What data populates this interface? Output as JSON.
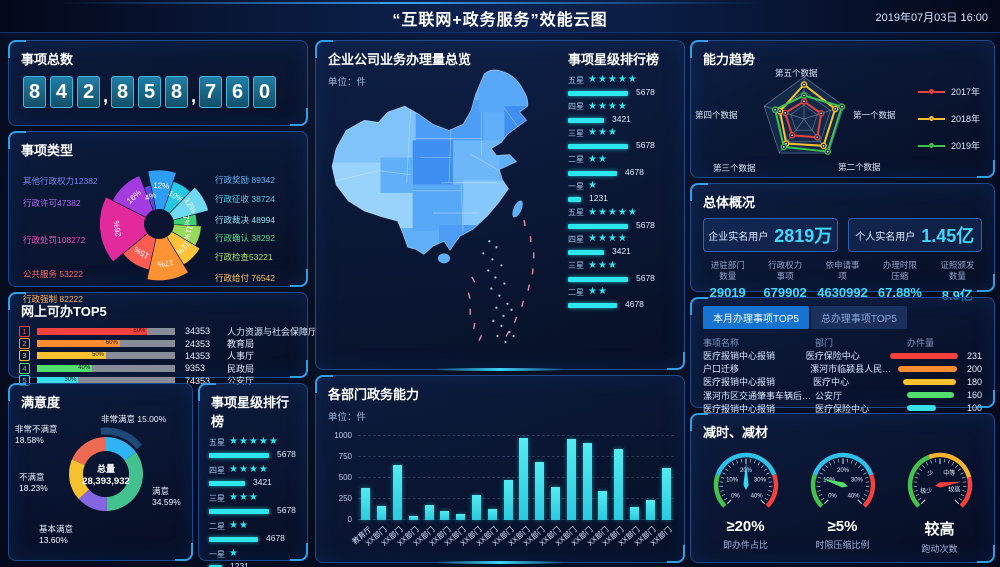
{
  "header": {
    "title": "“互联网+政务服务”效能云图",
    "datetime": "2019年07月03日  16:00"
  },
  "panels": {
    "total_count": {
      "title": "事项总数",
      "value": "842,858,760"
    },
    "item_types": {
      "title": "事项类型"
    },
    "online_top5": {
      "title": "网上可办TOP5"
    },
    "satisfaction": {
      "title": "满意度"
    },
    "star_rank_small": {
      "title": "事项星级排行榜"
    },
    "map_overview": {
      "title": "企业公司业务办理量总览",
      "unit": "单位：件"
    },
    "star_rank_map": {
      "title": "事项星级排行榜"
    },
    "dept_ability": {
      "title": "各部门政务能力",
      "unit": "单位：件"
    },
    "ability_trend": {
      "title": "能力趋势"
    },
    "overview": {
      "title": "总体概况",
      "big_stats": [
        {
          "label": "企业实名用户",
          "value": "2819万"
        },
        {
          "label": "个人实名用户",
          "value": "1.45亿"
        }
      ],
      "stats": [
        {
          "label_lines": [
            "进驻部门",
            "数量"
          ],
          "value": "29019"
        },
        {
          "label_lines": [
            "行政权力",
            "事项"
          ],
          "value": "679902"
        },
        {
          "label_lines": [
            "依申请事",
            "项"
          ],
          "value": "4630992"
        },
        {
          "label_lines": [
            "办理时限",
            "压缩"
          ],
          "value": "67.88%"
        },
        {
          "label_lines": [
            "证照颁发",
            "数量"
          ],
          "value": "8.9亿"
        }
      ]
    },
    "handle_top5": {
      "tabs": [
        {
          "label": "本月办理事项TOP5",
          "active": true
        },
        {
          "label": "总办理事项TOP5",
          "active": false
        }
      ],
      "columns": [
        "事项名称",
        "部门",
        "办件量"
      ]
    },
    "reduce": {
      "title": "减时、减材"
    }
  },
  "chart_data": [
    {
      "id": "item_types_rose",
      "type": "pie",
      "subtype": "rose",
      "title": "事项类型",
      "slices": [
        {
          "label": "行政奖励",
          "value": 89342,
          "pct": 12,
          "color": "#2e9df6",
          "r": 60
        },
        {
          "label": "行政征收",
          "value": 38724,
          "pct": 10,
          "color": "#27c6e2",
          "r": 50
        },
        {
          "label": "行政裁决",
          "value": 48994,
          "pct": 12,
          "color": "#6fd9f2",
          "r": 57
        },
        {
          "label": "行政确认",
          "value": 38292,
          "pct": 7,
          "color": "#3ecf70",
          "r": 42
        },
        {
          "label": "行政检查",
          "value": 53221,
          "pct": 11,
          "color": "#97d95a",
          "r": 47
        },
        {
          "label": "行政给付",
          "value": 76542,
          "pct": 11,
          "color": "#ffc23a",
          "r": 53
        },
        {
          "label": "行政强制",
          "value": 82222,
          "pct": 17,
          "color": "#ff9232",
          "r": 63
        },
        {
          "label": "公共服务",
          "value": 53222,
          "pct": 15,
          "color": "#ff5d52",
          "r": 52
        },
        {
          "label": "行政处罚",
          "value": 108272,
          "pct": 26,
          "color": "#e32a9d",
          "r": 66
        },
        {
          "label": "行政许可",
          "value": 47382,
          "pct": 16,
          "color": "#a43be0",
          "r": 58
        },
        {
          "label": "其他行政权力",
          "value": 12382,
          "pct": 4,
          "color": "#5a49d8",
          "r": 44
        }
      ],
      "left_labels": [
        {
          "text": "其他行政权力12382",
          "color": "#7b86f0"
        },
        {
          "text": "行政许可47382",
          "color": "#b06ef0"
        },
        {
          "text": "行政处罚108272",
          "color": "#ef4fb8"
        },
        {
          "text": "公共服务 53222",
          "color": "#ff6a62"
        },
        {
          "text": "行政强制 82222",
          "color": "#ffb150"
        }
      ],
      "right_labels": [
        {
          "text": "行政奖励 89342",
          "color": "#58b6f8"
        },
        {
          "text": "行政征收 38724",
          "color": "#4fd4ec"
        },
        {
          "text": "行政裁决 48994",
          "color": "#8fe2f5"
        },
        {
          "text": "行政确认 38292",
          "color": "#56d98a"
        },
        {
          "text": "行政检查53221",
          "color": "#a8e06c"
        },
        {
          "text": "行政给付 76542",
          "color": "#ffc964"
        }
      ]
    },
    {
      "id": "online_top5",
      "type": "bar",
      "orientation": "horizontal",
      "title": "网上可办TOP5",
      "rows": [
        {
          "rank": 1,
          "pct": "80%",
          "fill": 80,
          "value": "34353",
          "name": "人力资源与社会保障厅",
          "color": "#f5413d"
        },
        {
          "rank": 2,
          "pct": "60%",
          "fill": 60,
          "value": "24353",
          "name": "教育局",
          "color": "#ff8c2e"
        },
        {
          "rank": 3,
          "pct": "50%",
          "fill": 50,
          "value": "14353",
          "name": "人事厅",
          "color": "#f7c22e"
        },
        {
          "rank": 4,
          "pct": "40%",
          "fill": 40,
          "value": "9353",
          "name": "民政局",
          "color": "#52de6d"
        },
        {
          "rank": 5,
          "pct": "30%",
          "fill": 30,
          "value": "74353",
          "name": "公安厅",
          "color": "#35e0e8"
        }
      ]
    },
    {
      "id": "satisfaction",
      "type": "pie",
      "subtype": "donut",
      "title": "满意度",
      "center_label": "总量",
      "center_value": "28,393,932",
      "segments": [
        {
          "label": "非常满意",
          "pct": 15.0,
          "display": "15.00%",
          "color": "#2fb3f3"
        },
        {
          "label": "满意",
          "pct": 34.59,
          "display": "34.59%",
          "color": "#43c28f"
        },
        {
          "label": "基本满意",
          "pct": 13.6,
          "display": "13.60%",
          "color": "#8565e0"
        },
        {
          "label": "不满意",
          "pct": 18.23,
          "display": "18.23%",
          "color": "#f6c12f"
        },
        {
          "label": "非常不满意",
          "pct": 18.58,
          "display": "18.58%",
          "color": "#ef6a52"
        }
      ]
    },
    {
      "id": "star_rank",
      "type": "bar",
      "title": "事项星级排行榜",
      "max": 5678,
      "rows": [
        {
          "label": "五星",
          "stars": 5,
          "value": 5678
        },
        {
          "label": "四星",
          "stars": 4,
          "value": 3421
        },
        {
          "label": "三星",
          "stars": 3,
          "value": 5678
        },
        {
          "label": "二星",
          "stars": 2,
          "value": 4678
        },
        {
          "label": "一星",
          "stars": 1,
          "value": 1231
        }
      ],
      "map_list_count": 9
    },
    {
      "id": "dept_ability",
      "type": "bar",
      "title": "各部门政务能力",
      "ylabel": "单位：件",
      "ylim": [
        0,
        1000
      ],
      "yticks": [
        0,
        250,
        500,
        750,
        1000
      ],
      "color": "#38dfe9",
      "categories": [
        "教育厅",
        "XX部门",
        "XX部门",
        "XX部门",
        "XX部门",
        "XX部门",
        "XX部门",
        "XX部门",
        "XX部门",
        "XX部门",
        "XX部门",
        "XX部门",
        "XX部门",
        "XX部门",
        "XX部门",
        "XX部门",
        "XX部门",
        "XX部门",
        "XX部门",
        "XX部门"
      ],
      "values": [
        380,
        170,
        650,
        50,
        175,
        110,
        75,
        300,
        130,
        480,
        980,
        690,
        390,
        970,
        920,
        340,
        850,
        160,
        240,
        620
      ]
    },
    {
      "id": "ability_trend",
      "type": "radar",
      "title": "能力趋势",
      "max": 100,
      "axes": [
        "第五个数据",
        "第一个数据",
        "第二个数据",
        "第三个数据",
        "第四个数据"
      ],
      "series": [
        {
          "name": "2017年",
          "color": "#e64340",
          "values": [
            42,
            43,
            54,
            48,
            47
          ]
        },
        {
          "name": "2018年",
          "color": "#f6c12f",
          "values": [
            82,
            78,
            79,
            72,
            60
          ]
        },
        {
          "name": "2019年",
          "color": "#3fc24e",
          "values": [
            56,
            95,
            96,
            82,
            72
          ]
        }
      ]
    },
    {
      "id": "handle_top5",
      "type": "table",
      "title": "本月办理事项TOP5",
      "max": 231,
      "rows": [
        {
          "name": "医疗报销中心报销",
          "dept": "医疗保险中心",
          "value": 231,
          "color": "#f5413d"
        },
        {
          "name": "户口迁移",
          "dept": "漯河市临颍县人民社保...",
          "value": 200,
          "color": "#ff8c2e"
        },
        {
          "name": "医疗报销中心报销",
          "dept": "医疗中心",
          "value": 180,
          "color": "#f7c22e"
        },
        {
          "name": "漯河市区交通肇事车辆后续处...",
          "dept": "公安厅",
          "value": 160,
          "color": "#52de6d"
        },
        {
          "name": "医疗报销中心报销",
          "dept": "医疗保险中心",
          "value": 100,
          "color": "#35e0e8"
        }
      ]
    },
    {
      "id": "gauges",
      "type": "gauge",
      "title": "减时、减材",
      "items": [
        {
          "value": "≥20%",
          "label": "即办件占比",
          "needle": 0.5,
          "needle_color": "#35d8f8",
          "ticks": [
            {
              "t": "0%",
              "f": 0
            },
            {
              "t": "10%",
              "f": 0.25
            },
            {
              "t": "20%",
              "f": 0.5
            },
            {
              "t": "30%",
              "f": 0.75
            },
            {
              "t": "40%",
              "f": 1
            }
          ],
          "arcs": [
            {
              "f0": 0,
              "f1": 0.24,
              "color": "#43c24e"
            },
            {
              "f0": 0.24,
              "f1": 0.76,
              "color": "#2fc0ea"
            },
            {
              "f0": 0.76,
              "f1": 1,
              "color": "#f5413d"
            }
          ]
        },
        {
          "value": "≥5%",
          "label": "时限压缩比例",
          "needle": 0.23,
          "needle_color": "#52de6d",
          "ticks": [
            {
              "t": "0%",
              "f": 0
            },
            {
              "t": "10%",
              "f": 0.25
            },
            {
              "t": "20%",
              "f": 0.5
            },
            {
              "t": "30%",
              "f": 0.75
            },
            {
              "t": "40%",
              "f": 1
            }
          ],
          "arcs": [
            {
              "f0": 0,
              "f1": 0.24,
              "color": "#43c24e"
            },
            {
              "f0": 0.24,
              "f1": 0.76,
              "color": "#2fc0ea"
            },
            {
              "f0": 0.76,
              "f1": 1,
              "color": "#f5413d"
            }
          ]
        },
        {
          "value": "较高",
          "label": "跑动次数",
          "needle": 0.8,
          "needle_color": "#f5413d",
          "ticks": [
            {
              "t": "极少",
              "f": 0.08
            },
            {
              "t": "少",
              "f": 0.35
            },
            {
              "t": "中等",
              "f": 0.64
            },
            {
              "t": "较高",
              "f": 0.9
            }
          ],
          "arcs": [
            {
              "f0": 0,
              "f1": 0.42,
              "color": "#43c24e"
            },
            {
              "f0": 0.42,
              "f1": 0.78,
              "color": "#f7b32e"
            },
            {
              "f0": 0.78,
              "f1": 1,
              "color": "#f5413d"
            }
          ]
        }
      ]
    }
  ]
}
